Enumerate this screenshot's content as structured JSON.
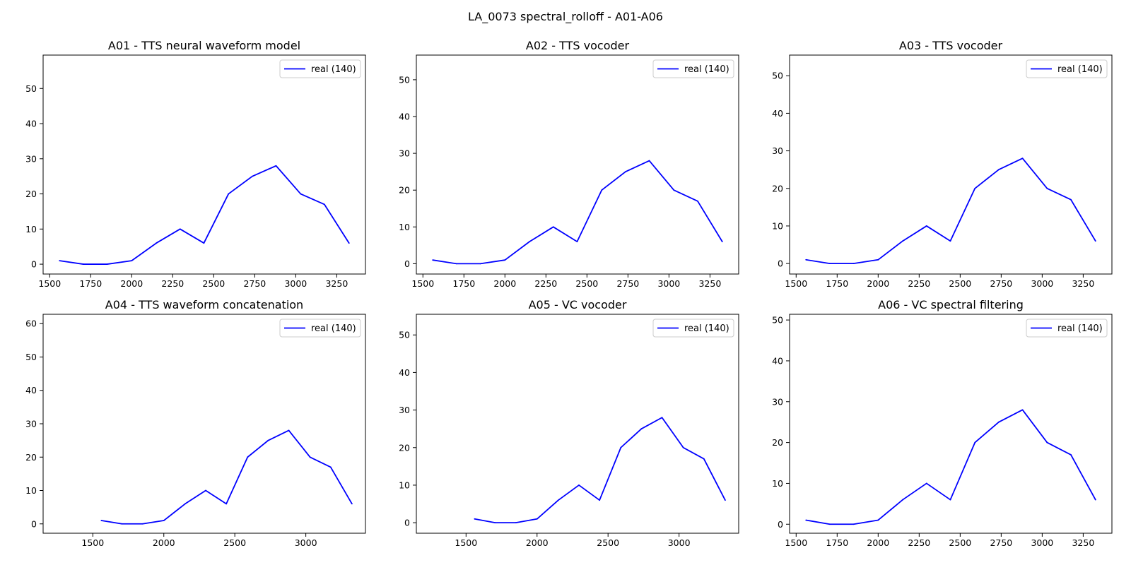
{
  "figure": {
    "suptitle": "LA_0073 spectral_rolloff - A01-A06"
  },
  "colors": {
    "line": "#0000ff",
    "axes": "#000000",
    "legend_border": "#cccccc",
    "background": "#ffffff"
  },
  "chart_data": [
    {
      "type": "line",
      "title": "A01 - TTS neural waveform model",
      "xlabel": "",
      "ylabel": "",
      "xlim": [
        1460,
        3425
      ],
      "ylim": [
        -2.8,
        59.5
      ],
      "xticks": [
        1500,
        1750,
        2000,
        2250,
        2500,
        2750,
        3000,
        3250
      ],
      "yticks": [
        0,
        10,
        20,
        30,
        40,
        50
      ],
      "legend_position": "top-right",
      "grid": false,
      "series": [
        {
          "name": "real (140)",
          "x": [
            1560,
            1705,
            1850,
            2000,
            2150,
            2295,
            2440,
            2590,
            2735,
            2880,
            3030,
            3175,
            3325
          ],
          "y": [
            1,
            0,
            0,
            1,
            6,
            10,
            6,
            20,
            25,
            28,
            20,
            17,
            6
          ]
        }
      ]
    },
    {
      "type": "line",
      "title": "A02 - TTS vocoder",
      "xlabel": "",
      "ylabel": "",
      "xlim": [
        1460,
        3425
      ],
      "ylim": [
        -2.8,
        56.7
      ],
      "xticks": [
        1500,
        1750,
        2000,
        2250,
        2500,
        2750,
        3000,
        3250
      ],
      "yticks": [
        0,
        10,
        20,
        30,
        40,
        50
      ],
      "legend_position": "top-right",
      "grid": false,
      "series": [
        {
          "name": "real (140)",
          "x": [
            1560,
            1705,
            1850,
            2000,
            2150,
            2295,
            2440,
            2590,
            2735,
            2880,
            3030,
            3175,
            3325
          ],
          "y": [
            1,
            0,
            0,
            1,
            6,
            10,
            6,
            20,
            25,
            28,
            20,
            17,
            6
          ]
        }
      ]
    },
    {
      "type": "line",
      "title": "A03 - TTS vocoder",
      "xlabel": "",
      "ylabel": "",
      "xlim": [
        1460,
        3425
      ],
      "ylim": [
        -2.8,
        55.5
      ],
      "xticks": [
        1500,
        1750,
        2000,
        2250,
        2500,
        2750,
        3000,
        3250
      ],
      "yticks": [
        0,
        10,
        20,
        30,
        40,
        50
      ],
      "legend_position": "top-right",
      "grid": false,
      "series": [
        {
          "name": "real (140)",
          "x": [
            1560,
            1705,
            1850,
            2000,
            2150,
            2295,
            2440,
            2590,
            2735,
            2880,
            3030,
            3175,
            3325
          ],
          "y": [
            1,
            0,
            0,
            1,
            6,
            10,
            6,
            20,
            25,
            28,
            20,
            17,
            6
          ]
        }
      ]
    },
    {
      "type": "line",
      "title": "A04 - TTS waveform concatenation",
      "xlabel": "",
      "ylabel": "",
      "xlim": [
        1150,
        3420
      ],
      "ylim": [
        -2.8,
        62.8
      ],
      "xticks": [
        1500,
        2000,
        2500,
        3000
      ],
      "yticks": [
        0,
        10,
        20,
        30,
        40,
        50,
        60
      ],
      "legend_position": "top-right",
      "grid": false,
      "series": [
        {
          "name": "real (140)",
          "x": [
            1560,
            1705,
            1850,
            2000,
            2150,
            2295,
            2440,
            2590,
            2735,
            2880,
            3030,
            3175,
            3325
          ],
          "y": [
            1,
            0,
            0,
            1,
            6,
            10,
            6,
            20,
            25,
            28,
            20,
            17,
            6
          ]
        }
      ]
    },
    {
      "type": "line",
      "title": "A05 - VC vocoder",
      "xlabel": "",
      "ylabel": "",
      "xlim": [
        1150,
        3420
      ],
      "ylim": [
        -2.8,
        55.5
      ],
      "xticks": [
        1500,
        2000,
        2500,
        3000
      ],
      "yticks": [
        0,
        10,
        20,
        30,
        40,
        50
      ],
      "legend_position": "top-right",
      "grid": false,
      "series": [
        {
          "name": "real (140)",
          "x": [
            1560,
            1705,
            1850,
            2000,
            2150,
            2295,
            2440,
            2590,
            2735,
            2880,
            3030,
            3175,
            3325
          ],
          "y": [
            1,
            0,
            0,
            1,
            6,
            10,
            6,
            20,
            25,
            28,
            20,
            17,
            6
          ]
        }
      ]
    },
    {
      "type": "line",
      "title": "A06 - VC spectral filtering",
      "xlabel": "",
      "ylabel": "",
      "xlim": [
        1460,
        3425
      ],
      "ylim": [
        -2.2,
        51.4
      ],
      "xticks": [
        1500,
        1750,
        2000,
        2250,
        2500,
        2750,
        3000,
        3250
      ],
      "yticks": [
        0,
        10,
        20,
        30,
        40,
        50
      ],
      "legend_position": "top-right",
      "grid": false,
      "series": [
        {
          "name": "real (140)",
          "x": [
            1560,
            1705,
            1850,
            2000,
            2150,
            2295,
            2440,
            2590,
            2735,
            2880,
            3030,
            3175,
            3325
          ],
          "y": [
            1,
            0,
            0,
            1,
            6,
            10,
            6,
            20,
            25,
            28,
            20,
            17,
            6
          ]
        }
      ]
    }
  ]
}
